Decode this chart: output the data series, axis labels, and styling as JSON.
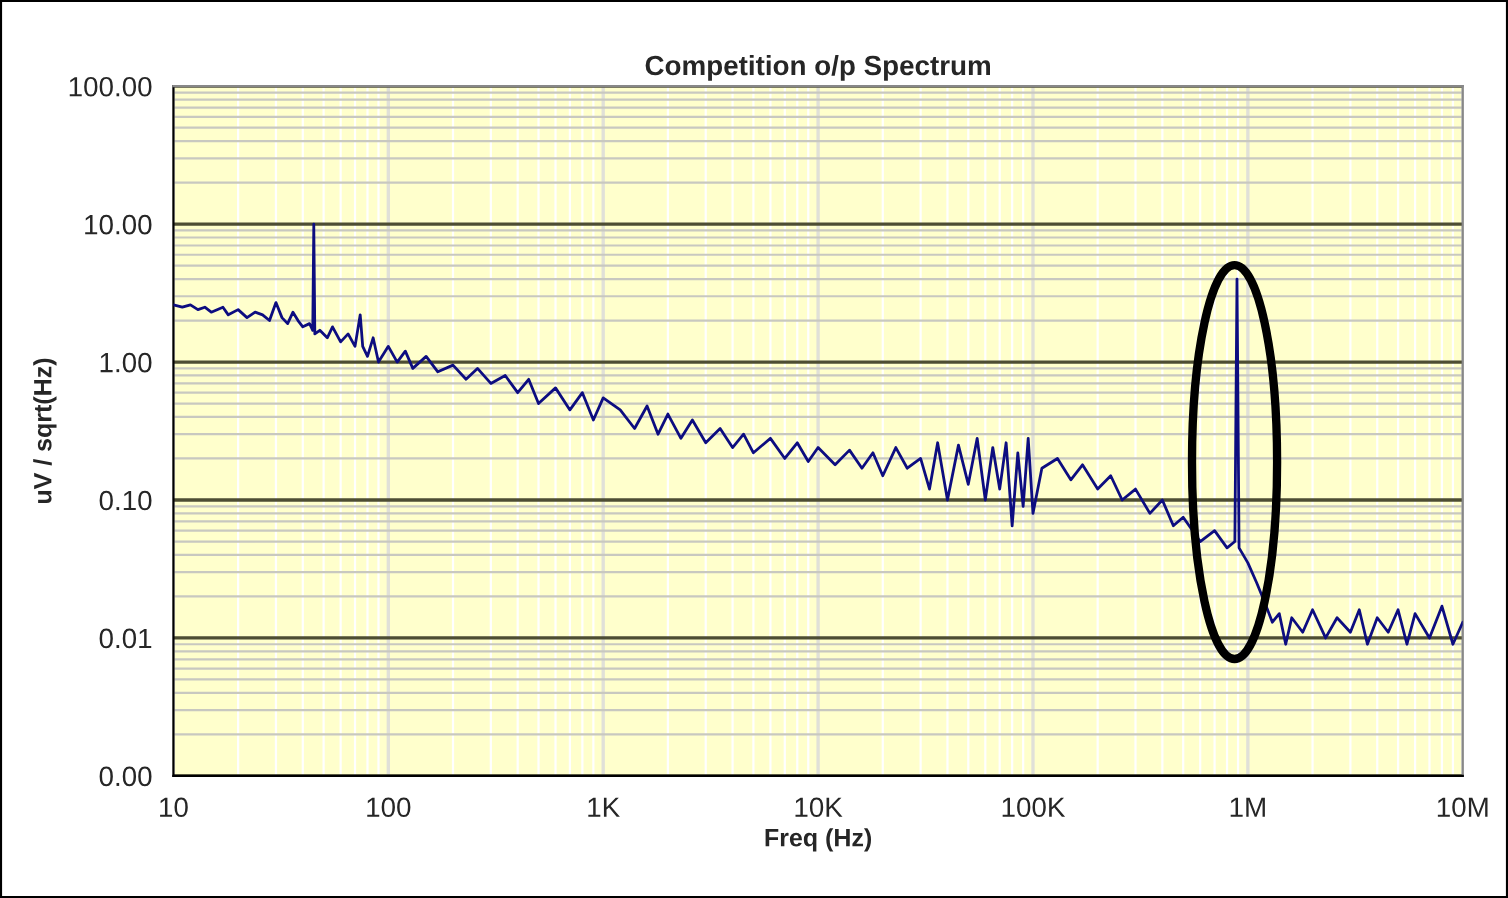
{
  "chart_data": {
    "type": "line",
    "title": "Competition o/p Spectrum",
    "xlabel": "Freq (Hz)",
    "ylabel": "uV / sqrt(Hz)",
    "log": "xy",
    "grid": true,
    "legend": false,
    "marker": "none",
    "line_style": "solid",
    "xlim": [
      10,
      10000000
    ],
    "xticks": [
      10,
      100,
      {
        "value": 1000,
        "label": "1K"
      },
      {
        "value": 10000,
        "label": "10K"
      },
      {
        "value": 100000,
        "label": "100K"
      },
      {
        "value": 1000000,
        "label": "1M"
      },
      {
        "value": 10000000,
        "label": "10M"
      }
    ],
    "ylim": [
      0.001,
      100
    ],
    "yticks": [
      {
        "value": 0.001,
        "label": "0.00"
      },
      {
        "value": 0.01,
        "label": "0.01"
      },
      {
        "value": 0.1,
        "label": "0.10"
      },
      {
        "value": 1,
        "label": "1.00"
      },
      {
        "value": 10,
        "label": "10.00"
      },
      {
        "value": 100,
        "label": "100.00"
      }
    ],
    "series": [
      {
        "color": "#0d0d80",
        "x": [
          10,
          11,
          12,
          13,
          14,
          15,
          17,
          18,
          20,
          22,
          24,
          26,
          28,
          30,
          32,
          34,
          36,
          38,
          40,
          43,
          44.5,
          45,
          45.5,
          48,
          52,
          55,
          60,
          65,
          70,
          74,
          76,
          80,
          85,
          90,
          100,
          110,
          120,
          130,
          150,
          170,
          200,
          230,
          260,
          300,
          350,
          400,
          450,
          500,
          600,
          700,
          800,
          900,
          1000,
          1200,
          1400,
          1600,
          1800,
          2000,
          2300,
          2600,
          3000,
          3500,
          4000,
          4500,
          5000,
          6000,
          7000,
          8000,
          9000,
          10000,
          12000,
          14000,
          16000,
          18000,
          20000,
          23000,
          26000,
          30000,
          33000,
          36000,
          40000,
          45000,
          50000,
          55000,
          60000,
          65000,
          70000,
          75000,
          80000,
          85000,
          90000,
          95000,
          100000,
          110000,
          130000,
          150000,
          170000,
          200000,
          230000,
          260000,
          300000,
          350000,
          400000,
          450000,
          500000,
          600000,
          700000,
          800000,
          870000,
          890000,
          910000,
          1000000,
          1100000,
          1200000,
          1300000,
          1400000,
          1500000,
          1600000,
          1800000,
          2000000,
          2300000,
          2600000,
          3000000,
          3300000,
          3600000,
          4000000,
          4500000,
          5000000,
          5500000,
          6000000,
          7000000,
          8000000,
          9000000,
          10000000
        ],
        "values": [
          2.6,
          2.5,
          2.6,
          2.4,
          2.5,
          2.3,
          2.5,
          2.2,
          2.4,
          2.1,
          2.3,
          2.2,
          2.0,
          2.7,
          2.1,
          1.9,
          2.3,
          2.0,
          1.8,
          1.9,
          1.7,
          10,
          1.6,
          1.7,
          1.5,
          1.8,
          1.4,
          1.6,
          1.3,
          2.2,
          1.3,
          1.1,
          1.5,
          1.0,
          1.3,
          1.0,
          1.2,
          0.9,
          1.1,
          0.85,
          0.95,
          0.75,
          0.9,
          0.7,
          0.8,
          0.6,
          0.75,
          0.5,
          0.65,
          0.45,
          0.6,
          0.38,
          0.55,
          0.45,
          0.33,
          0.48,
          0.3,
          0.42,
          0.28,
          0.38,
          0.26,
          0.33,
          0.24,
          0.3,
          0.22,
          0.28,
          0.2,
          0.26,
          0.19,
          0.24,
          0.18,
          0.23,
          0.17,
          0.22,
          0.15,
          0.24,
          0.17,
          0.2,
          0.12,
          0.26,
          0.1,
          0.25,
          0.13,
          0.28,
          0.1,
          0.24,
          0.12,
          0.26,
          0.065,
          0.22,
          0.09,
          0.28,
          0.08,
          0.17,
          0.2,
          0.14,
          0.18,
          0.12,
          0.15,
          0.1,
          0.12,
          0.08,
          0.1,
          0.065,
          0.075,
          0.05,
          0.06,
          0.045,
          0.05,
          4.0,
          0.045,
          0.035,
          0.025,
          0.018,
          0.013,
          0.015,
          0.009,
          0.014,
          0.011,
          0.016,
          0.01,
          0.014,
          0.011,
          0.016,
          0.009,
          0.014,
          0.011,
          0.016,
          0.009,
          0.015,
          0.01,
          0.017,
          0.009,
          0.013
        ]
      }
    ]
  }
}
